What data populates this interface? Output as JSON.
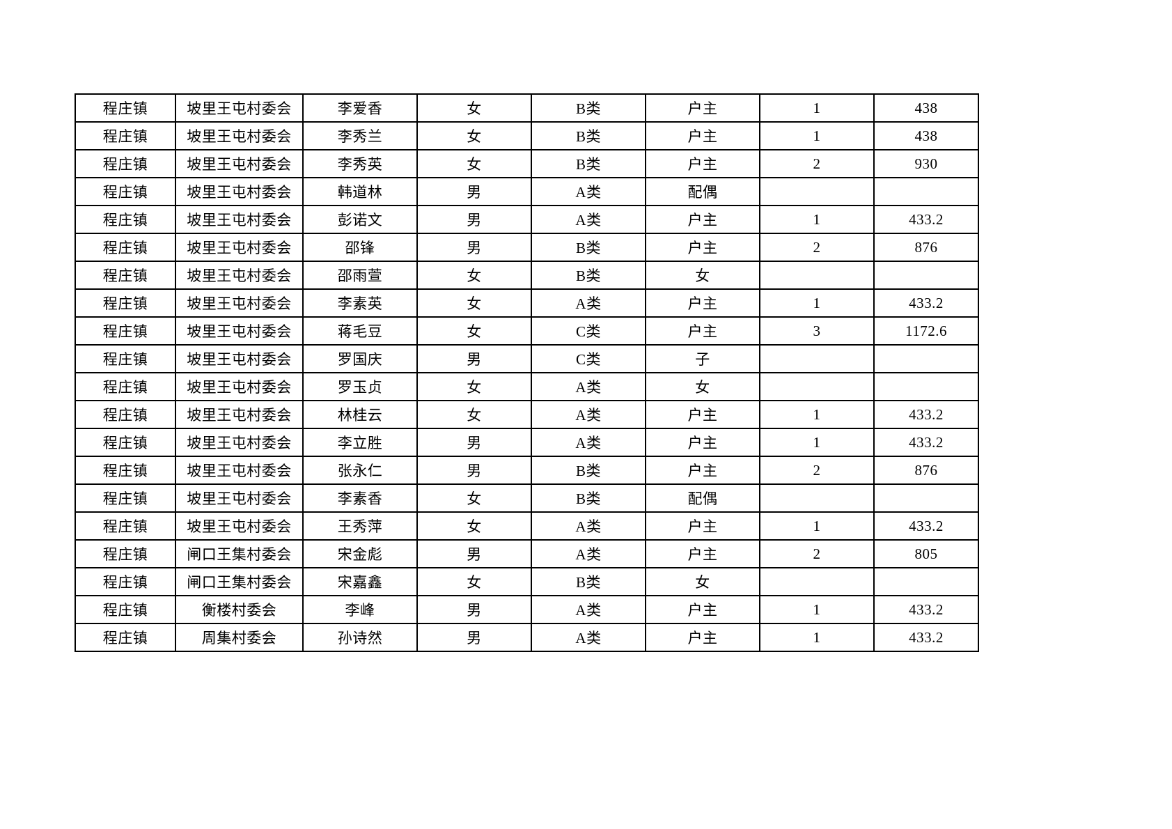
{
  "page": {
    "background_color": "#ffffff",
    "border_color": "#000000"
  },
  "table": {
    "columns": [
      {
        "key": "town"
      },
      {
        "key": "village"
      },
      {
        "key": "name"
      },
      {
        "key": "gender"
      },
      {
        "key": "category"
      },
      {
        "key": "relation"
      },
      {
        "key": "count"
      },
      {
        "key": "amount"
      }
    ],
    "rows": [
      {
        "town": "程庄镇",
        "village": "坡里王屯村委会",
        "name": "李爱香",
        "gender": "女",
        "category": "B类",
        "relation": "户主",
        "count": "1",
        "amount": "438"
      },
      {
        "town": "程庄镇",
        "village": "坡里王屯村委会",
        "name": "李秀兰",
        "gender": "女",
        "category": "B类",
        "relation": "户主",
        "count": "1",
        "amount": "438"
      },
      {
        "town": "程庄镇",
        "village": "坡里王屯村委会",
        "name": "李秀英",
        "gender": "女",
        "category": "B类",
        "relation": "户主",
        "count": "2",
        "amount": "930"
      },
      {
        "town": "程庄镇",
        "village": "坡里王屯村委会",
        "name": "韩道林",
        "gender": "男",
        "category": "A类",
        "relation": "配偶",
        "count": "",
        "amount": ""
      },
      {
        "town": "程庄镇",
        "village": "坡里王屯村委会",
        "name": "彭诺文",
        "gender": "男",
        "category": "A类",
        "relation": "户主",
        "count": "1",
        "amount": "433.2"
      },
      {
        "town": "程庄镇",
        "village": "坡里王屯村委会",
        "name": "邵锋",
        "gender": "男",
        "category": "B类",
        "relation": "户主",
        "count": "2",
        "amount": "876"
      },
      {
        "town": "程庄镇",
        "village": "坡里王屯村委会",
        "name": "邵雨萱",
        "gender": "女",
        "category": "B类",
        "relation": "女",
        "count": "",
        "amount": ""
      },
      {
        "town": "程庄镇",
        "village": "坡里王屯村委会",
        "name": "李素英",
        "gender": "女",
        "category": "A类",
        "relation": "户主",
        "count": "1",
        "amount": "433.2"
      },
      {
        "town": "程庄镇",
        "village": "坡里王屯村委会",
        "name": "蒋毛豆",
        "gender": "女",
        "category": "C类",
        "relation": "户主",
        "count": "3",
        "amount": "1172.6"
      },
      {
        "town": "程庄镇",
        "village": "坡里王屯村委会",
        "name": "罗国庆",
        "gender": "男",
        "category": "C类",
        "relation": "子",
        "count": "",
        "amount": ""
      },
      {
        "town": "程庄镇",
        "village": "坡里王屯村委会",
        "name": "罗玉贞",
        "gender": "女",
        "category": "A类",
        "relation": "女",
        "count": "",
        "amount": ""
      },
      {
        "town": "程庄镇",
        "village": "坡里王屯村委会",
        "name": "林桂云",
        "gender": "女",
        "category": "A类",
        "relation": "户主",
        "count": "1",
        "amount": "433.2"
      },
      {
        "town": "程庄镇",
        "village": "坡里王屯村委会",
        "name": "李立胜",
        "gender": "男",
        "category": "A类",
        "relation": "户主",
        "count": "1",
        "amount": "433.2"
      },
      {
        "town": "程庄镇",
        "village": "坡里王屯村委会",
        "name": "张永仁",
        "gender": "男",
        "category": "B类",
        "relation": "户主",
        "count": "2",
        "amount": "876"
      },
      {
        "town": "程庄镇",
        "village": "坡里王屯村委会",
        "name": "李素香",
        "gender": "女",
        "category": "B类",
        "relation": "配偶",
        "count": "",
        "amount": ""
      },
      {
        "town": "程庄镇",
        "village": "坡里王屯村委会",
        "name": "王秀萍",
        "gender": "女",
        "category": "A类",
        "relation": "户主",
        "count": "1",
        "amount": "433.2"
      },
      {
        "town": "程庄镇",
        "village": "闸口王集村委会",
        "name": "宋金彪",
        "gender": "男",
        "category": "A类",
        "relation": "户主",
        "count": "2",
        "amount": "805"
      },
      {
        "town": "程庄镇",
        "village": "闸口王集村委会",
        "name": "宋嘉鑫",
        "gender": "女",
        "category": "B类",
        "relation": "女",
        "count": "",
        "amount": ""
      },
      {
        "town": "程庄镇",
        "village": "衡楼村委会",
        "name": "李峰",
        "gender": "男",
        "category": "A类",
        "relation": "户主",
        "count": "1",
        "amount": "433.2"
      },
      {
        "town": "程庄镇",
        "village": "周集村委会",
        "name": "孙诗然",
        "gender": "男",
        "category": "A类",
        "relation": "户主",
        "count": "1",
        "amount": "433.2"
      }
    ]
  }
}
